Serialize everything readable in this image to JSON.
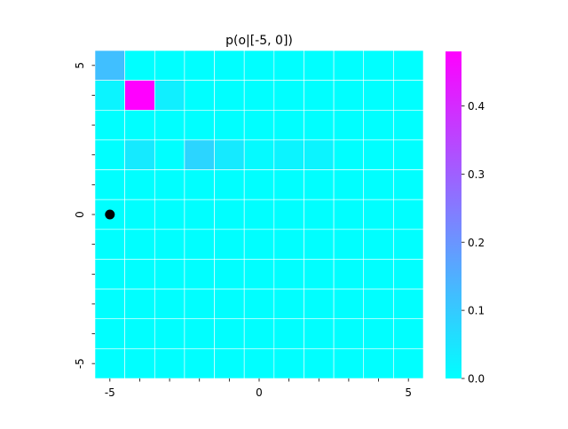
{
  "chart_data": {
    "type": "heatmap",
    "title": "p(o|[-5, 0])",
    "x_range": [
      -5,
      5
    ],
    "y_range": [
      -5,
      5
    ],
    "grid_lines": true,
    "colormap": "cool",
    "colormap_colors": [
      "#00ffff",
      "#ff00ff"
    ],
    "x_tick_labels": [
      "-5",
      "0",
      "5"
    ],
    "y_tick_labels": [
      "5",
      "0",
      "-5"
    ],
    "colorbar": {
      "range": [
        0.0,
        0.48
      ],
      "tick_values": [
        0.0,
        0.1,
        0.2,
        0.3,
        0.4
      ],
      "tick_labels": [
        "0.0",
        "0.1",
        "0.2",
        "0.3",
        "0.4"
      ]
    },
    "rows_top_to_bottom": [
      [
        0.12,
        0.0,
        0.0,
        0.0,
        0.0,
        0.0,
        0.0,
        0.0,
        0.0,
        0.0,
        0.0
      ],
      [
        0.02,
        0.48,
        0.03,
        0.0,
        0.0,
        0.0,
        0.0,
        0.0,
        0.0,
        0.0,
        0.0
      ],
      [
        0.0,
        0.0,
        0.0,
        0.0,
        0.0,
        0.0,
        0.0,
        0.0,
        0.0,
        0.0,
        0.0
      ],
      [
        0.0,
        0.04,
        0.0,
        0.08,
        0.04,
        0.01,
        0.02,
        0.02,
        0.0,
        0.0,
        0.0
      ],
      [
        0.0,
        0.0,
        0.0,
        0.0,
        0.0,
        0.0,
        0.0,
        0.0,
        0.0,
        0.0,
        0.0
      ],
      [
        0.0,
        0.0,
        0.0,
        0.0,
        0.0,
        0.0,
        0.0,
        0.0,
        0.0,
        0.0,
        0.0
      ],
      [
        0.0,
        0.0,
        0.0,
        0.0,
        0.0,
        0.0,
        0.0,
        0.0,
        0.0,
        0.0,
        0.0
      ],
      [
        0.0,
        0.0,
        0.0,
        0.0,
        0.0,
        0.0,
        0.0,
        0.0,
        0.0,
        0.0,
        0.0
      ],
      [
        0.0,
        0.0,
        0.0,
        0.0,
        0.0,
        0.0,
        0.0,
        0.0,
        0.0,
        0.0,
        0.0
      ],
      [
        0.0,
        0.0,
        0.0,
        0.0,
        0.0,
        0.0,
        0.0,
        0.0,
        0.0,
        0.0,
        0.0
      ],
      [
        0.0,
        0.0,
        0.0,
        0.0,
        0.0,
        0.0,
        0.0,
        0.0,
        0.0,
        0.0,
        0.0
      ]
    ],
    "marker": {
      "x": -5,
      "y": 0,
      "color": "#000000"
    }
  }
}
